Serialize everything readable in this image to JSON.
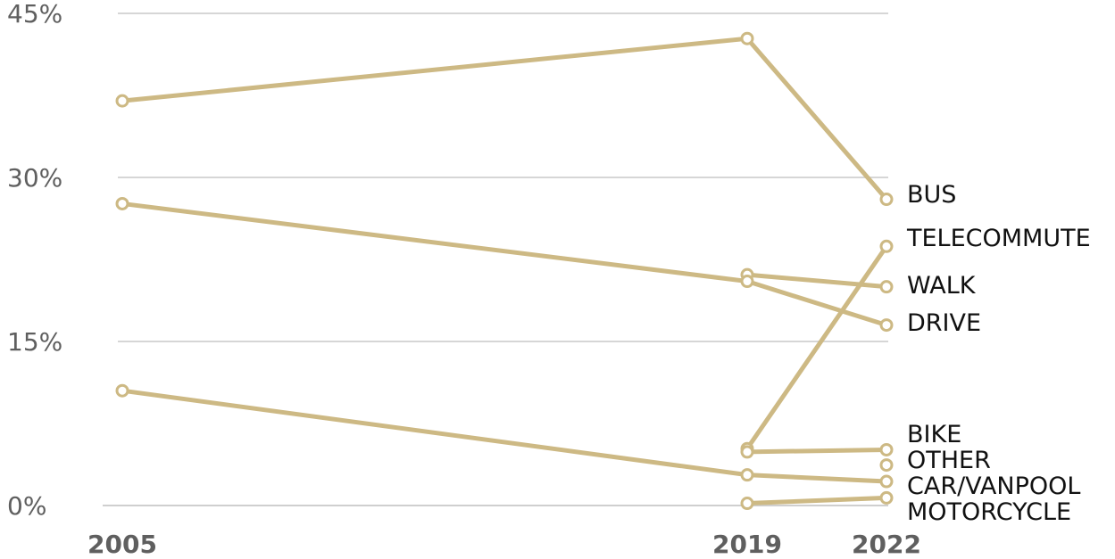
{
  "chart_data": {
    "type": "line",
    "title": "",
    "xlabel": "",
    "ylabel": "",
    "x": [
      2005,
      2019,
      2022
    ],
    "x_tick_labels": [
      "2005",
      "2019",
      "2022"
    ],
    "ylim": [
      0,
      45
    ],
    "y_ticks": [
      0,
      15,
      30,
      45
    ],
    "y_tick_labels": [
      "0%",
      "15%",
      "30%",
      "45%"
    ],
    "grid": true,
    "legend": "labels at right end of lines",
    "line_color": "#cdb984",
    "series": [
      {
        "name": "BUS",
        "values": [
          37.0,
          42.7,
          28.0
        ]
      },
      {
        "name": "TELECOMMUTE",
        "values": [
          null,
          5.2,
          23.7
        ]
      },
      {
        "name": "WALK",
        "values": [
          null,
          21.1,
          20.0
        ]
      },
      {
        "name": "DRIVE",
        "values": [
          27.6,
          20.5,
          16.5
        ]
      },
      {
        "name": "BIKE",
        "values": [
          null,
          4.9,
          5.1
        ]
      },
      {
        "name": "OTHER",
        "values": [
          null,
          null,
          3.7
        ]
      },
      {
        "name": "CAR/VANPOOL",
        "values": [
          10.5,
          2.8,
          2.2
        ]
      },
      {
        "name": "MOTORCYCLE",
        "values": [
          null,
          0.2,
          0.7
        ]
      }
    ]
  }
}
